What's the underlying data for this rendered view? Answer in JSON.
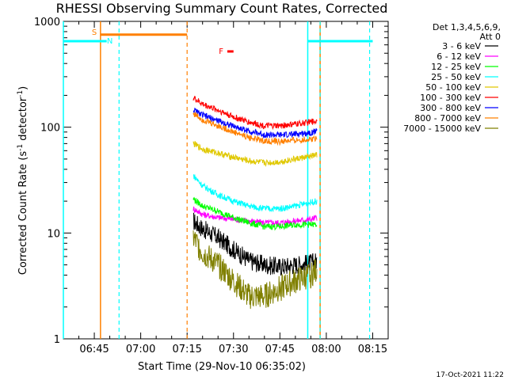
{
  "chart_data": {
    "type": "line",
    "title": "RHESSI Observing Summary Count Rates, Corrected",
    "xlabel": "Start Time (29-Nov-10 06:35:02)",
    "ylabel_main": "Corrected Count Rate (s",
    "ylabel_sup1": "-1",
    "ylabel_mid": " detector",
    "ylabel_sup2": "-1",
    "ylabel_end": ")",
    "y_scale": "log",
    "ylim": [
      1,
      1000
    ],
    "xlim": [
      "06:35",
      "08:20"
    ],
    "x_ticks": [
      "06:45",
      "07:00",
      "07:15",
      "07:30",
      "07:45",
      "08:00",
      "08:15"
    ],
    "y_ticks": [
      "1",
      "10",
      "100",
      "1000"
    ],
    "legend_placement": "right",
    "legend_header": [
      "Det 1,3,4,5,6,9,",
      "Att 0"
    ],
    "series": [
      {
        "name": "3 - 6 keV",
        "color": "#000000",
        "x": [
          "07:17",
          "07:20",
          "07:25",
          "07:30",
          "07:35",
          "07:40",
          "07:45",
          "07:50",
          "07:55",
          "07:57"
        ],
        "y": [
          13,
          11,
          9,
          7,
          5.5,
          5,
          4.8,
          5,
          5.2,
          5.5
        ]
      },
      {
        "name": "6 - 12 keV",
        "color": "#ff00ff",
        "x": [
          "07:17",
          "07:20",
          "07:25",
          "07:30",
          "07:35",
          "07:40",
          "07:45",
          "07:50",
          "07:55",
          "07:57"
        ],
        "y": [
          17,
          15,
          14,
          13.5,
          13,
          12.5,
          12.5,
          13,
          13.5,
          14
        ]
      },
      {
        "name": "12 - 25 keV",
        "color": "#00ff00",
        "x": [
          "07:17",
          "07:20",
          "07:25",
          "07:30",
          "07:35",
          "07:40",
          "07:45",
          "07:50",
          "07:55",
          "07:57"
        ],
        "y": [
          21,
          18,
          16,
          14,
          12.5,
          11.5,
          11.5,
          12,
          12,
          12
        ]
      },
      {
        "name": "25 - 50 keV",
        "color": "#00ffff",
        "x": [
          "07:17",
          "07:20",
          "07:25",
          "07:30",
          "07:35",
          "07:40",
          "07:45",
          "07:50",
          "07:55",
          "07:57"
        ],
        "y": [
          35,
          28,
          23,
          20,
          18,
          17,
          17,
          18,
          19.5,
          20
        ]
      },
      {
        "name": "50 - 100 keV",
        "color": "#e0c800",
        "x": [
          "07:17",
          "07:20",
          "07:25",
          "07:30",
          "07:35",
          "07:40",
          "07:45",
          "07:50",
          "07:55",
          "07:57"
        ],
        "y": [
          70,
          62,
          57,
          52,
          48,
          46,
          47,
          50,
          53,
          55
        ]
      },
      {
        "name": "100 - 300 keV",
        "color": "#ff0000",
        "x": [
          "07:17",
          "07:20",
          "07:25",
          "07:30",
          "07:35",
          "07:40",
          "07:45",
          "07:50",
          "07:55",
          "07:57"
        ],
        "y": [
          190,
          165,
          145,
          125,
          112,
          103,
          103,
          107,
          112,
          115
        ]
      },
      {
        "name": "300 - 800 keV",
        "color": "#0000ff",
        "x": [
          "07:17",
          "07:20",
          "07:25",
          "07:30",
          "07:35",
          "07:40",
          "07:45",
          "07:50",
          "07:55",
          "07:57"
        ],
        "y": [
          145,
          130,
          115,
          102,
          92,
          85,
          84,
          86,
          89,
          92
        ]
      },
      {
        "name": "800 - 7000 keV",
        "color": "#ff8000",
        "x": [
          "07:17",
          "07:20",
          "07:25",
          "07:30",
          "07:35",
          "07:40",
          "07:45",
          "07:50",
          "07:55",
          "07:57"
        ],
        "y": [
          135,
          118,
          103,
          90,
          80,
          74,
          73,
          75,
          77,
          80
        ]
      },
      {
        "name": "7000 - 15000 keV",
        "color": "#808000",
        "x": [
          "07:17",
          "07:20",
          "07:25",
          "07:30",
          "07:35",
          "07:40",
          "07:45",
          "07:50",
          "07:55",
          "07:57"
        ],
        "y": [
          9,
          6.5,
          5,
          3.5,
          2.5,
          2.5,
          3,
          3.5,
          4,
          4.5
        ]
      }
    ],
    "annotations": [
      {
        "text": "S",
        "color": "#ff8000",
        "x": "06:45"
      },
      {
        "text": "N",
        "color": "#00ffff",
        "x": "06:50"
      },
      {
        "text": "F",
        "color": "#ff0000",
        "x": "07:26"
      }
    ],
    "markers": {
      "saa_bar": {
        "color": "#ff8000",
        "x_start": "06:47",
        "x_end": "07:15",
        "y": 750
      },
      "night_bars": [
        {
          "color": "#00ffff",
          "x_start": "06:35",
          "x_end": "06:49",
          "y": 650
        },
        {
          "color": "#00ffff",
          "x_start": "07:54",
          "x_end": "08:15",
          "y": 650
        }
      ],
      "flare_bar": {
        "color": "#ff0000",
        "x_start": "07:28",
        "x_end": "07:30",
        "y": 520
      },
      "solid_vlines": [
        {
          "color": "#00ffff",
          "x": "06:35"
        },
        {
          "color": "#ff8000",
          "x": "06:47"
        },
        {
          "color": "#00ffff",
          "x": "07:54"
        },
        {
          "color": "#ff8000",
          "x": "07:58"
        }
      ],
      "dashed_vlines": [
        {
          "color": "#00ffff",
          "x": "06:53"
        },
        {
          "color": "#ff8000",
          "x": "07:15"
        },
        {
          "color": "#00ffff",
          "x": "07:58"
        },
        {
          "color": "#00ffff",
          "x": "08:14"
        }
      ]
    },
    "timestamp": "17-Oct-2021 11:22"
  }
}
